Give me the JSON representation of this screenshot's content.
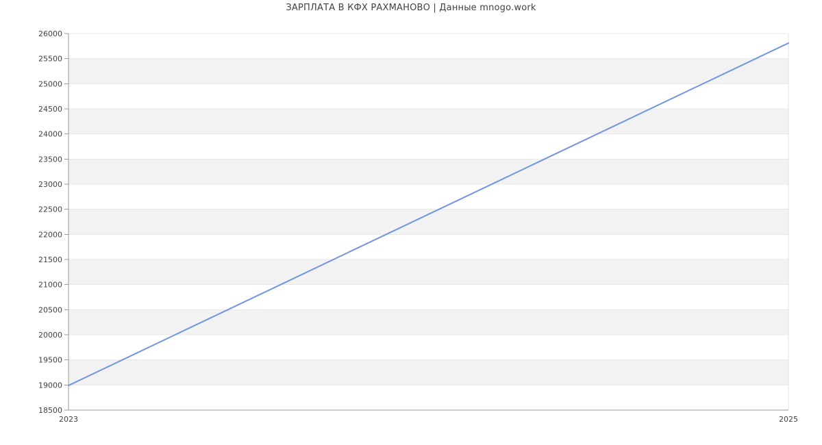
{
  "chart": {
    "title": "ЗАРПЛАТА В КФХ РАХМАНОВО | Данные mnogo.work"
  },
  "chart_data": {
    "type": "line",
    "title": "ЗАРПЛАТА В КФХ РАХМАНОВО | Данные mnogo.work",
    "x": [
      2023,
      2025
    ],
    "y": [
      18990,
      25810
    ],
    "xlabel": "",
    "ylabel": "",
    "xlim": [
      2023,
      2025
    ],
    "ylim": [
      18500,
      26000
    ],
    "yticks": [
      18500,
      19000,
      19500,
      20000,
      20500,
      21000,
      21500,
      22000,
      22500,
      23000,
      23500,
      24000,
      24500,
      25000,
      25500,
      26000
    ],
    "xticks": [
      2023,
      2025
    ],
    "xtick_labels": [
      "2023",
      "2025"
    ],
    "grid": true,
    "alternating_bands": true,
    "legend": "none",
    "markers": false,
    "colors": {
      "line": "#7094e5",
      "band": "#f2f2f2",
      "grid": "#e8e8e8",
      "axis": "#999999",
      "plot_border": "#e0e0e0",
      "text": "#404040",
      "title": "#404040",
      "background": "#ffffff"
    }
  }
}
